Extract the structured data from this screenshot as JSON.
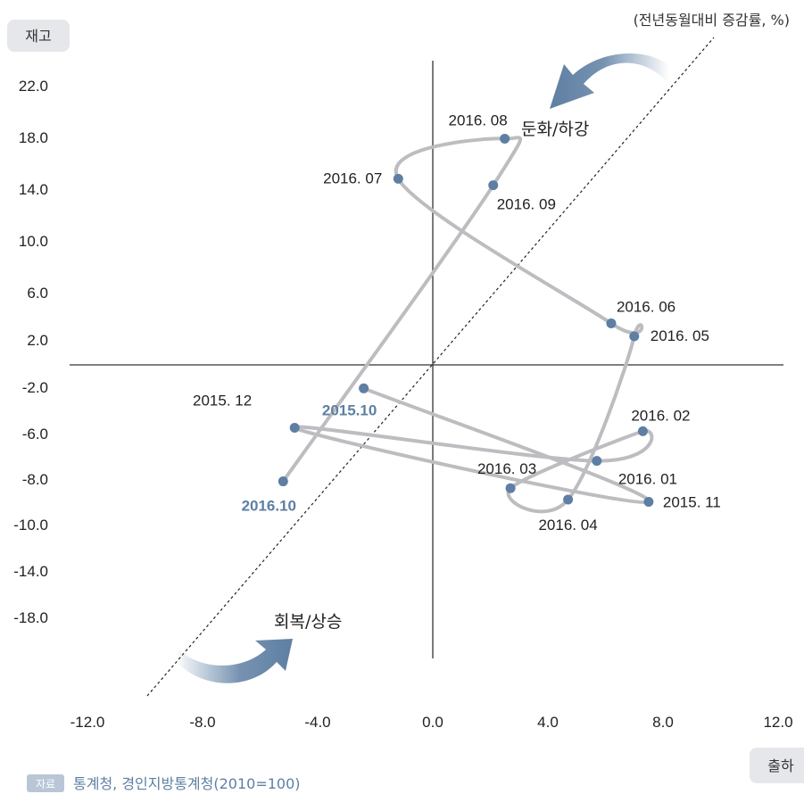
{
  "chart_data": {
    "type": "line",
    "unit_note": "(전년동월대비 증감률, %)",
    "xlabel": "출하",
    "ylabel": "재고",
    "xlim": [
      -12,
      12
    ],
    "ylim": [
      -20,
      24
    ],
    "x_ticks": [
      "-12.0",
      "-8.0",
      "-4.0",
      "0.0",
      "4.0",
      "8.0",
      "12.0"
    ],
    "y_ticks": [
      "22.0",
      "18.0",
      "14.0",
      "10.0",
      "6.0",
      "2.0",
      "-2.0",
      "-6.0",
      "-8.0",
      "-10.0",
      "-14.0",
      "-18.0"
    ],
    "points": [
      {
        "label": "2015.10",
        "x": -2.4,
        "y": -2.1,
        "highlight": true
      },
      {
        "label": "2015. 11",
        "x": 7.5,
        "y": -9.0
      },
      {
        "label": "2015. 12",
        "x": -4.8,
        "y": -5.5
      },
      {
        "label": "2016. 01",
        "x": 5.7,
        "y": -7.2
      },
      {
        "label": "2016. 02",
        "x": 7.3,
        "y": -5.8
      },
      {
        "label": "2016. 03",
        "x": 2.7,
        "y": -8.4
      },
      {
        "label": "2016. 04",
        "x": 4.7,
        "y": -8.9
      },
      {
        "label": "2016. 05",
        "x": 7.0,
        "y": 2.3
      },
      {
        "label": "2016. 06",
        "x": 6.2,
        "y": 3.4
      },
      {
        "label": "2016. 07",
        "x": -1.2,
        "y": 14.8
      },
      {
        "label": "2016. 08",
        "x": 2.5,
        "y": 17.9
      },
      {
        "label": "2016. 09",
        "x": 2.1,
        "y": 14.3
      },
      {
        "label": "2016.10",
        "x": -5.2,
        "y": -8.1,
        "highlight": true
      }
    ],
    "annotations": {
      "upper": "둔화/하강",
      "lower": "회복/상승"
    },
    "colors": {
      "line": "#bdbdc1",
      "marker": "#5e7fa3",
      "highlight": "#5e7fa3",
      "arrow": "#5e7fa3",
      "axis": "#333333"
    }
  },
  "source": {
    "tag": "자료",
    "text": "통계청, 경인지방통계청(2010=100)"
  }
}
